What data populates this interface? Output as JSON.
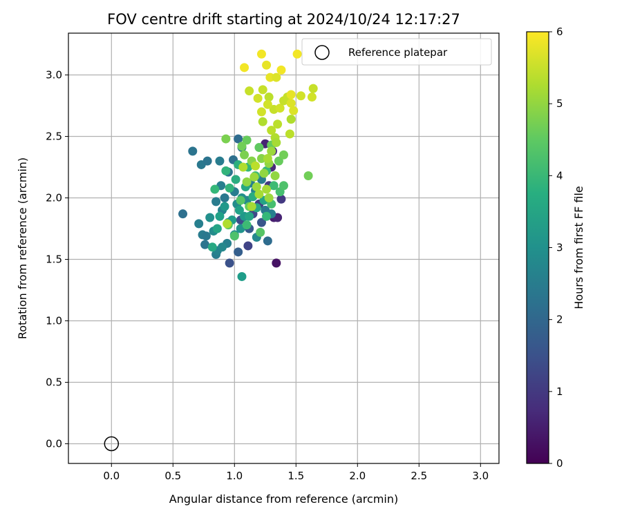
{
  "chart_data": {
    "type": "scatter",
    "title": "FOV centre drift starting at 2024/10/24 12:17:27",
    "xlabel": "Angular distance from reference (arcmin)",
    "ylabel": "Rotation from reference (arcmin)",
    "xlim": [
      -0.35,
      3.15
    ],
    "ylim": [
      -0.16,
      3.34
    ],
    "x_ticks": [
      "0.0",
      "0.5",
      "1.0",
      "1.5",
      "2.0",
      "2.5",
      "3.0"
    ],
    "y_ticks": [
      "0.0",
      "0.5",
      "1.0",
      "1.5",
      "2.0",
      "2.5",
      "3.0"
    ],
    "grid": true,
    "legend": {
      "placement": "top-right",
      "entries": [
        "Reference platepar"
      ]
    },
    "reference_point": {
      "x": 0.0,
      "y": 0.0,
      "label": "Reference platepar"
    },
    "colorbar": {
      "label": "Hours from first FF file",
      "min": 0,
      "max": 6,
      "ticks": [
        "0",
        "1",
        "2",
        "3",
        "4",
        "5",
        "6"
      ],
      "colormap": "viridis"
    },
    "series": [
      {
        "points": [
          [
            1.34,
            1.47,
            0.3
          ],
          [
            1.32,
            1.84,
            0.5
          ],
          [
            1.35,
            1.84,
            0.6
          ],
          [
            1.3,
            2.25,
            0.7
          ],
          [
            1.38,
            1.99,
            1.0
          ],
          [
            1.31,
            2.38,
            0.8
          ],
          [
            1.25,
            2.44,
            0.6
          ],
          [
            1.11,
            1.61,
            1.2
          ],
          [
            0.96,
            1.47,
            1.5
          ],
          [
            1.03,
            1.56,
            1.8
          ],
          [
            1.05,
            1.82,
            1.4
          ],
          [
            1.15,
            1.87,
            1.3
          ],
          [
            1.2,
            1.95,
            1.1
          ],
          [
            1.28,
            2.1,
            1.0
          ],
          [
            1.22,
            1.8,
            1.6
          ],
          [
            1.12,
            1.75,
            1.7
          ],
          [
            1.27,
            1.65,
            2.1
          ],
          [
            0.58,
            1.87,
            2.2
          ],
          [
            0.66,
            2.38,
            2.3
          ],
          [
            0.73,
            2.27,
            2.4
          ],
          [
            0.78,
            2.3,
            2.3
          ],
          [
            0.88,
            2.3,
            2.5
          ],
          [
            0.71,
            1.79,
            2.6
          ],
          [
            0.74,
            1.7,
            2.5
          ],
          [
            0.77,
            1.69,
            2.4
          ],
          [
            0.76,
            1.62,
            2.3
          ],
          [
            0.85,
            1.54,
            2.5
          ],
          [
            0.94,
            1.63,
            2.6
          ],
          [
            0.86,
            1.57,
            2.7
          ],
          [
            0.9,
            1.6,
            2.8
          ],
          [
            0.83,
            1.73,
            2.9
          ],
          [
            0.8,
            1.84,
            3.0
          ],
          [
            0.85,
            1.97,
            2.5
          ],
          [
            0.89,
            2.1,
            2.6
          ],
          [
            0.92,
            2.0,
            2.4
          ],
          [
            0.95,
            2.21,
            2.3
          ],
          [
            0.99,
            2.31,
            2.2
          ],
          [
            1.03,
            2.48,
            2.1
          ],
          [
            1.06,
            2.41,
            2.2
          ],
          [
            1.0,
            2.05,
            2.5
          ],
          [
            0.9,
            1.9,
            2.7
          ],
          [
            0.95,
            1.8,
            2.9
          ],
          [
            1.0,
            1.7,
            3.0
          ],
          [
            1.05,
            1.75,
            3.1
          ],
          [
            1.08,
            1.85,
            3.2
          ],
          [
            1.02,
            1.95,
            2.9
          ],
          [
            1.06,
            2.0,
            3.0
          ],
          [
            1.1,
            1.98,
            2.8
          ],
          [
            1.13,
            2.12,
            2.6
          ],
          [
            1.17,
            2.06,
            2.7
          ],
          [
            1.22,
            2.15,
            2.5
          ],
          [
            1.25,
            1.9,
            2.4
          ],
          [
            1.3,
            1.87,
            2.6
          ],
          [
            1.18,
            1.68,
            2.8
          ],
          [
            1.06,
            1.36,
            3.3
          ],
          [
            0.92,
            1.93,
            3.2
          ],
          [
            0.88,
            1.85,
            3.4
          ],
          [
            0.86,
            1.75,
            3.5
          ],
          [
            0.82,
            1.6,
            3.6
          ],
          [
            0.98,
            1.82,
            3.3
          ],
          [
            1.04,
            1.9,
            3.4
          ],
          [
            1.12,
            1.85,
            3.5
          ],
          [
            1.18,
            1.92,
            3.6
          ],
          [
            1.24,
            1.98,
            3.5
          ],
          [
            1.15,
            2.01,
            3.7
          ],
          [
            1.09,
            2.09,
            3.6
          ],
          [
            1.01,
            2.15,
            3.7
          ],
          [
            0.96,
            2.08,
            3.9
          ],
          [
            0.84,
            2.07,
            4.0
          ],
          [
            0.93,
            2.22,
            3.9
          ],
          [
            1.03,
            2.27,
            3.8
          ],
          [
            1.11,
            2.25,
            4.0
          ],
          [
            1.17,
            2.18,
            4.1
          ],
          [
            1.26,
            2.22,
            4.0
          ],
          [
            1.32,
            2.1,
            4.1
          ],
          [
            1.37,
            2.05,
            4.2
          ],
          [
            1.4,
            2.1,
            4.3
          ],
          [
            1.3,
            1.95,
            4.2
          ],
          [
            1.26,
            1.85,
            4.0
          ],
          [
            1.1,
            1.78,
            4.1
          ],
          [
            1.0,
            1.69,
            4.3
          ],
          [
            0.95,
            1.78,
            4.5
          ],
          [
            1.05,
            1.98,
            4.4
          ],
          [
            1.12,
            1.93,
            4.6
          ],
          [
            1.21,
            1.72,
            4.4
          ],
          [
            1.6,
            2.18,
            4.7
          ],
          [
            1.36,
            2.3,
            4.6
          ],
          [
            1.4,
            2.35,
            4.7
          ],
          [
            1.3,
            2.43,
            4.6
          ],
          [
            1.2,
            2.41,
            4.5
          ],
          [
            1.1,
            2.47,
            4.6
          ],
          [
            1.06,
            2.42,
            4.7
          ],
          [
            0.93,
            2.48,
            4.8
          ],
          [
            1.08,
            2.35,
            4.8
          ],
          [
            1.14,
            2.3,
            4.9
          ],
          [
            1.22,
            2.32,
            4.9
          ],
          [
            1.28,
            2.28,
            5.0
          ],
          [
            1.24,
            2.2,
            5.0
          ],
          [
            1.16,
            2.17,
            5.1
          ],
          [
            1.1,
            2.13,
            5.0
          ],
          [
            1.18,
            2.09,
            5.1
          ],
          [
            1.26,
            2.07,
            5.2
          ],
          [
            1.2,
            2.03,
            5.2
          ],
          [
            1.28,
            2.0,
            5.1
          ],
          [
            1.33,
            2.18,
            5.0
          ],
          [
            1.3,
            2.38,
            5.1
          ],
          [
            1.33,
            2.49,
            5.3
          ],
          [
            1.3,
            2.55,
            5.4
          ],
          [
            1.35,
            2.6,
            5.4
          ],
          [
            1.45,
            2.52,
            5.4
          ],
          [
            1.46,
            2.64,
            5.3
          ],
          [
            1.32,
            2.72,
            5.5
          ],
          [
            1.28,
            2.82,
            5.4
          ],
          [
            1.23,
            2.88,
            5.5
          ],
          [
            1.19,
            2.81,
            5.6
          ],
          [
            1.27,
            2.76,
            5.6
          ],
          [
            1.22,
            2.7,
            5.6
          ],
          [
            1.37,
            2.73,
            5.6
          ],
          [
            1.4,
            2.79,
            5.5
          ],
          [
            1.43,
            2.82,
            5.5
          ],
          [
            1.46,
            2.77,
            5.7
          ],
          [
            1.48,
            2.71,
            5.7
          ],
          [
            1.54,
            2.83,
            5.6
          ],
          [
            1.63,
            2.82,
            5.6
          ],
          [
            1.64,
            2.89,
            5.5
          ],
          [
            1.46,
            2.84,
            5.8
          ],
          [
            1.29,
            2.98,
            5.8
          ],
          [
            1.34,
            2.98,
            5.7
          ],
          [
            1.38,
            3.04,
            5.9
          ],
          [
            1.26,
            3.08,
            5.8
          ],
          [
            1.22,
            3.17,
            5.9
          ],
          [
            1.08,
            3.06,
            5.9
          ],
          [
            1.51,
            3.17,
            5.9
          ],
          [
            1.12,
            2.87,
            5.5
          ],
          [
            1.23,
            2.62,
            5.3
          ],
          [
            1.34,
            2.45,
            5.2
          ],
          [
            1.14,
            1.93,
            5.2
          ],
          [
            0.94,
            1.79,
            5.3
          ],
          [
            1.07,
            2.25,
            5.3
          ],
          [
            1.17,
            2.26,
            5.4
          ],
          [
            1.27,
            2.32,
            5.2
          ]
        ]
      }
    ]
  }
}
